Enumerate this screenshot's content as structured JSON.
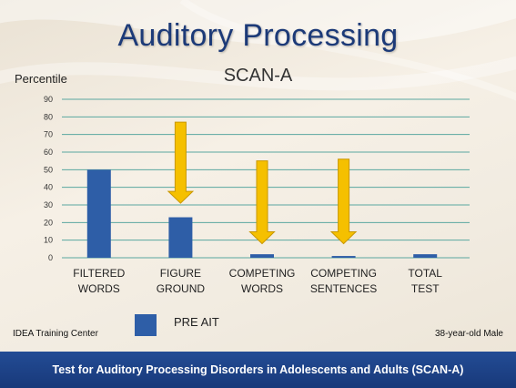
{
  "slide": {
    "title": "Auditory Processing",
    "organization": "IDEA Training Center",
    "subject": "38-year-old Male",
    "footer": "Test for Auditory Processing Disorders in Adolescents and Adults (SCAN-A)"
  },
  "colors": {
    "bar": "#2e5ea7",
    "arrow": "#f5c000",
    "title": "#1c3a78",
    "gridline": "#5aa7a0",
    "footer": "#1f448a"
  },
  "chart_data": {
    "type": "bar",
    "title": "SCAN-A",
    "ylabel": "Percentile",
    "xlabel": "",
    "ylim": [
      0,
      90
    ],
    "yticks": [
      0,
      10,
      20,
      30,
      40,
      50,
      60,
      70,
      80,
      90
    ],
    "grid": true,
    "categories": [
      [
        "FILTERED",
        "WORDS"
      ],
      [
        "FIGURE",
        "GROUND"
      ],
      [
        "COMPETING",
        "WORDS"
      ],
      [
        "COMPETING",
        "SENTENCES"
      ],
      [
        "TOTAL",
        "TEST"
      ]
    ],
    "series": [
      {
        "name": "PRE AIT",
        "values": [
          50,
          23,
          2,
          1,
          2
        ]
      }
    ],
    "legend_position": "bottom-left",
    "annotations": [
      {
        "type": "down-arrow",
        "category_index": 1,
        "from_value": 77,
        "to_value": 31
      },
      {
        "type": "down-arrow",
        "category_index": 2,
        "from_value": 55,
        "to_value": 8
      },
      {
        "type": "down-arrow",
        "category_index": 3,
        "from_value": 56,
        "to_value": 8
      }
    ]
  }
}
